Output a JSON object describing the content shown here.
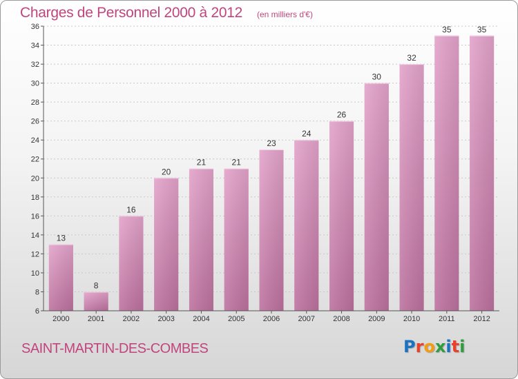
{
  "chart_data": {
    "type": "bar",
    "title": "Charges de Personnel 2000 à 2012",
    "subtitle": "(en milliers d'€)",
    "categories": [
      "2000",
      "2001",
      "2002",
      "2003",
      "2004",
      "2005",
      "2006",
      "2007",
      "2008",
      "2009",
      "2010",
      "2011",
      "2012"
    ],
    "values": [
      13,
      8,
      16,
      20,
      21,
      21,
      23,
      24,
      26,
      30,
      32,
      35,
      35
    ],
    "ylim": [
      6,
      36
    ],
    "yticks": [
      6,
      8,
      10,
      12,
      14,
      16,
      18,
      20,
      22,
      24,
      26,
      28,
      30,
      32,
      34,
      36
    ],
    "grid": true,
    "bar_color": "#d585b4",
    "title_color": "#c0457e"
  },
  "footer": {
    "commune": "SAINT-MARTIN-DES-COMBES"
  },
  "logo": {
    "text": "Proxiti",
    "letter_colors": [
      "#1a73c2",
      "#e8402a",
      "#f39c12",
      "#2e9e3c",
      "#1a73c2",
      "#e8402a",
      "#2e9e3c"
    ]
  }
}
